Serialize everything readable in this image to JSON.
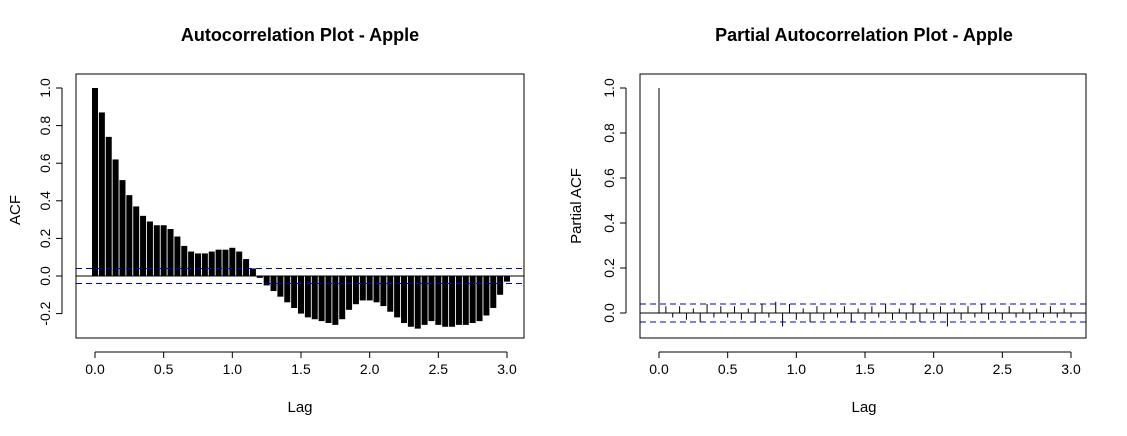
{
  "chart_data": [
    {
      "type": "bar",
      "title": "Autocorrelation Plot - Apple",
      "xlabel": "Lag",
      "ylabel": "ACF",
      "xlim": [
        0,
        3.0
      ],
      "ylim": [
        -0.3,
        1.0
      ],
      "xticks": [
        "0.0",
        "0.5",
        "1.0",
        "1.5",
        "2.0",
        "2.5",
        "3.0"
      ],
      "yticks": [
        "-0.2",
        "0.0",
        "0.2",
        "0.4",
        "0.6",
        "0.8",
        "1.0"
      ],
      "confidence_bound": 0.04,
      "confidence_color": "#0000cc",
      "bar_color": "#000000",
      "x": [
        0.0,
        0.05,
        0.1,
        0.15,
        0.2,
        0.25,
        0.3,
        0.35,
        0.4,
        0.45,
        0.5,
        0.55,
        0.6,
        0.65,
        0.7,
        0.75,
        0.8,
        0.85,
        0.9,
        0.95,
        1.0,
        1.05,
        1.1,
        1.15,
        1.2,
        1.25,
        1.3,
        1.35,
        1.4,
        1.45,
        1.5,
        1.55,
        1.6,
        1.65,
        1.7,
        1.75,
        1.8,
        1.85,
        1.9,
        1.95,
        2.0,
        2.05,
        2.1,
        2.15,
        2.2,
        2.25,
        2.3,
        2.35,
        2.4,
        2.45,
        2.5,
        2.55,
        2.6,
        2.65,
        2.7,
        2.75,
        2.8,
        2.85,
        2.9,
        2.95,
        3.0
      ],
      "values": [
        1.0,
        0.87,
        0.74,
        0.62,
        0.51,
        0.43,
        0.37,
        0.32,
        0.29,
        0.27,
        0.27,
        0.25,
        0.21,
        0.16,
        0.13,
        0.12,
        0.12,
        0.13,
        0.14,
        0.14,
        0.15,
        0.13,
        0.09,
        0.04,
        -0.01,
        -0.05,
        -0.08,
        -0.11,
        -0.14,
        -0.17,
        -0.2,
        -0.22,
        -0.23,
        -0.24,
        -0.25,
        -0.26,
        -0.23,
        -0.18,
        -0.15,
        -0.13,
        -0.13,
        -0.14,
        -0.16,
        -0.19,
        -0.22,
        -0.25,
        -0.27,
        -0.28,
        -0.26,
        -0.24,
        -0.26,
        -0.27,
        -0.27,
        -0.26,
        -0.26,
        -0.25,
        -0.24,
        -0.21,
        -0.17,
        -0.1,
        -0.03
      ]
    },
    {
      "type": "bar",
      "title": "Partial Autocorrelation Plot - Apple",
      "xlabel": "Lag",
      "ylabel": "Partial ACF",
      "xlim": [
        0,
        3.0
      ],
      "ylim": [
        -0.1,
        1.0
      ],
      "xticks": [
        "0.0",
        "0.5",
        "1.0",
        "1.5",
        "2.0",
        "2.5",
        "3.0"
      ],
      "yticks": [
        "0.0",
        "0.2",
        "0.4",
        "0.6",
        "0.8",
        "1.0"
      ],
      "confidence_bound": 0.04,
      "confidence_color": "#0000cc",
      "bar_color": "#000000",
      "x": [
        0.0,
        0.05,
        0.1,
        0.15,
        0.2,
        0.25,
        0.3,
        0.35,
        0.4,
        0.45,
        0.5,
        0.55,
        0.6,
        0.65,
        0.7,
        0.75,
        0.8,
        0.85,
        0.9,
        0.95,
        1.0,
        1.05,
        1.1,
        1.15,
        1.2,
        1.25,
        1.3,
        1.35,
        1.4,
        1.45,
        1.5,
        1.55,
        1.6,
        1.65,
        1.7,
        1.75,
        1.8,
        1.85,
        1.9,
        1.95,
        2.0,
        2.05,
        2.1,
        2.15,
        2.2,
        2.25,
        2.3,
        2.35,
        2.4,
        2.45,
        2.5,
        2.55,
        2.6,
        2.65,
        2.7,
        2.75,
        2.8,
        2.85,
        2.9,
        2.95,
        3.0
      ],
      "values": [
        1.0,
        0.03,
        -0.02,
        0.03,
        -0.03,
        0.02,
        -0.04,
        0.04,
        -0.02,
        0.03,
        -0.02,
        0.03,
        -0.03,
        0.02,
        -0.04,
        0.04,
        -0.02,
        0.05,
        -0.06,
        0.04,
        -0.03,
        0.02,
        -0.04,
        0.03,
        -0.03,
        0.02,
        -0.02,
        0.03,
        -0.04,
        0.02,
        -0.03,
        0.03,
        -0.02,
        0.04,
        -0.03,
        0.02,
        -0.03,
        0.04,
        -0.04,
        0.02,
        -0.03,
        0.03,
        -0.06,
        0.02,
        -0.03,
        0.03,
        -0.02,
        0.04,
        -0.03,
        0.02,
        -0.03,
        0.03,
        -0.02,
        0.02,
        -0.03,
        0.02,
        -0.02,
        0.03,
        -0.02,
        0.02,
        -0.02
      ]
    }
  ]
}
